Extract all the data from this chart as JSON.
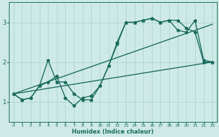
{
  "title": "",
  "xlabel": "Humidex (Indice chaleur)",
  "ylabel": "",
  "xlim": [
    -0.5,
    23.5
  ],
  "ylim": [
    0.5,
    3.5
  ],
  "yticks": [
    1,
    2,
    3
  ],
  "xticks": [
    0,
    1,
    2,
    3,
    4,
    5,
    6,
    7,
    8,
    9,
    10,
    11,
    12,
    13,
    14,
    15,
    16,
    17,
    18,
    19,
    20,
    21,
    22,
    23
  ],
  "bg_color": "#ceeae6",
  "grid_color": "#aed4cf",
  "line_color": "#1a6b5e",
  "line_width": 1.0,
  "marker": "*",
  "marker_size": 3.5,
  "series": {
    "line1_x": [
      0,
      1,
      2,
      3,
      4,
      5,
      6,
      7,
      8,
      9,
      10,
      11,
      12,
      13,
      14,
      15,
      16,
      17,
      18,
      19,
      20,
      21,
      22,
      23
    ],
    "line1_y": [
      1.2,
      1.05,
      1.1,
      1.4,
      1.5,
      1.65,
      1.1,
      0.9,
      1.1,
      1.15,
      1.4,
      1.9,
      2.45,
      3.0,
      3.0,
      3.05,
      3.1,
      3.0,
      3.05,
      3.05,
      2.85,
      2.75,
      2.0,
      2.0
    ],
    "line2_x": [
      0,
      1,
      2,
      3,
      4,
      5,
      6,
      7,
      8,
      9,
      10,
      11,
      12,
      13,
      14,
      15,
      16,
      17,
      18,
      19,
      20,
      21,
      22,
      23
    ],
    "line2_y": [
      1.2,
      1.05,
      1.1,
      1.4,
      2.05,
      1.5,
      1.5,
      1.2,
      1.05,
      1.05,
      1.4,
      1.9,
      2.5,
      3.0,
      3.0,
      3.05,
      3.1,
      3.0,
      3.05,
      2.8,
      2.75,
      3.05,
      2.05,
      2.0
    ],
    "line3_x": [
      0,
      23
    ],
    "line3_y": [
      1.2,
      2.0
    ],
    "line4_x": [
      0,
      23
    ],
    "line4_y": [
      1.2,
      2.95
    ]
  }
}
